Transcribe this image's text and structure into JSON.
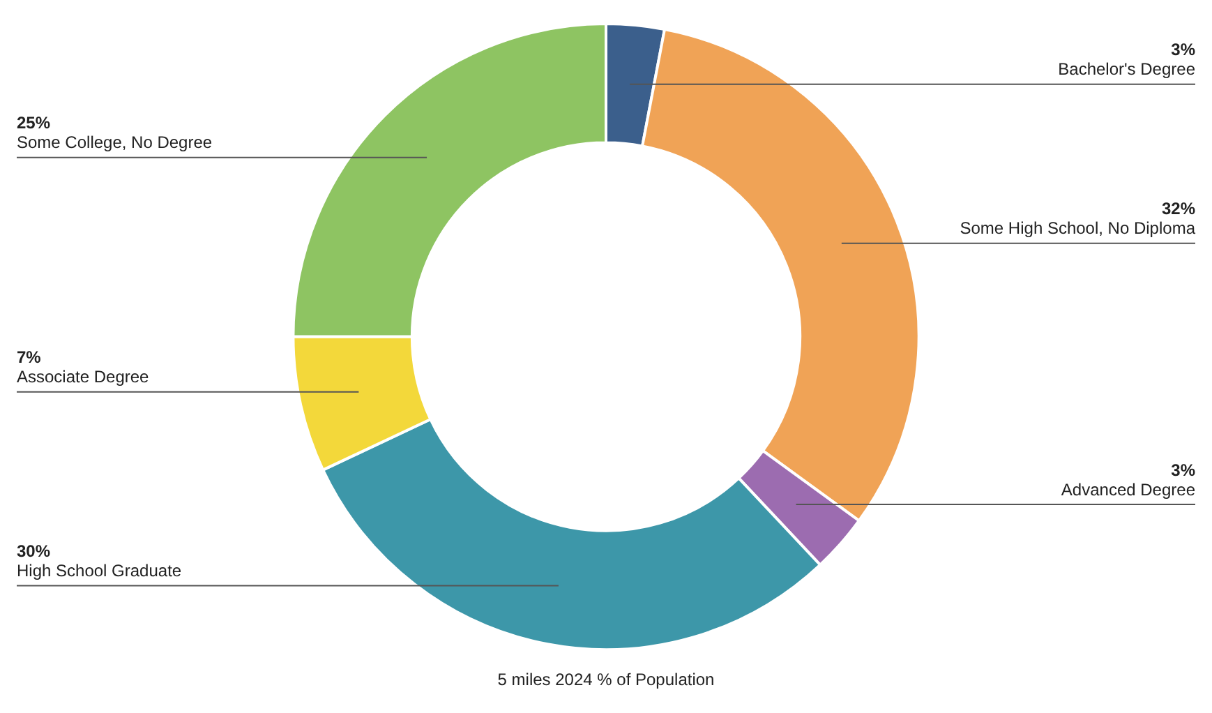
{
  "chart_data": {
    "type": "donut",
    "title": "5 miles 2024 % of Population",
    "categories": [
      "Bachelor's Degree",
      "Some High School, No Diploma",
      "Advanced Degree",
      "High School Graduate",
      "Associate Degree",
      "Some College, No Degree"
    ],
    "values": [
      3,
      32,
      3,
      30,
      7,
      25
    ],
    "value_labels": [
      "3%",
      "32%",
      "3%",
      "30%",
      "7%",
      "25%"
    ],
    "colors": [
      "#3b5f8c",
      "#f0a356",
      "#9c6cb0",
      "#3d97a9",
      "#f3d83a",
      "#8ec462"
    ],
    "legend": false
  }
}
